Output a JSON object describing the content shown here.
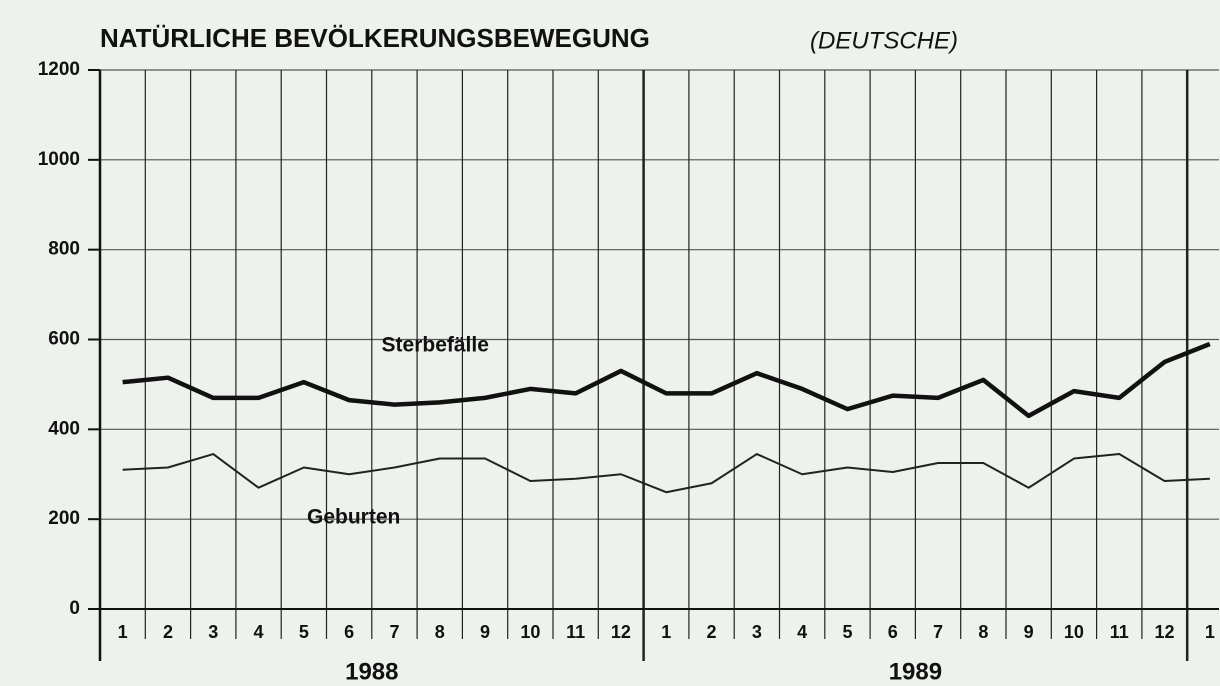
{
  "chart_data": {
    "type": "line",
    "title": "NATÜRLICHE BEVÖLKERUNGSBEWEGUNG",
    "subtitle": "(DEUTSCHE)",
    "categories": [
      "1",
      "2",
      "3",
      "4",
      "5",
      "6",
      "7",
      "8",
      "9",
      "10",
      "11",
      "12",
      "1",
      "2",
      "3",
      "4",
      "5",
      "6",
      "7",
      "8",
      "9",
      "10",
      "11",
      "12",
      "1"
    ],
    "year_labels": [
      "1988",
      "1989"
    ],
    "series": [
      {
        "name": "Sterbefälle",
        "color": "#111111",
        "values": [
          505,
          515,
          470,
          470,
          505,
          465,
          455,
          460,
          470,
          490,
          480,
          530,
          480,
          480,
          525,
          490,
          445,
          475,
          470,
          510,
          430,
          485,
          470,
          550,
          590
        ]
      },
      {
        "name": "Geburten",
        "color": "#222222",
        "values": [
          310,
          315,
          345,
          270,
          315,
          300,
          315,
          335,
          335,
          285,
          290,
          300,
          260,
          280,
          345,
          300,
          315,
          305,
          325,
          325,
          270,
          335,
          345,
          285,
          290
        ]
      }
    ],
    "ylim": [
      0,
      1200
    ],
    "yticks": [
      0,
      200,
      400,
      600,
      800,
      1000,
      1200
    ],
    "grid": true
  }
}
